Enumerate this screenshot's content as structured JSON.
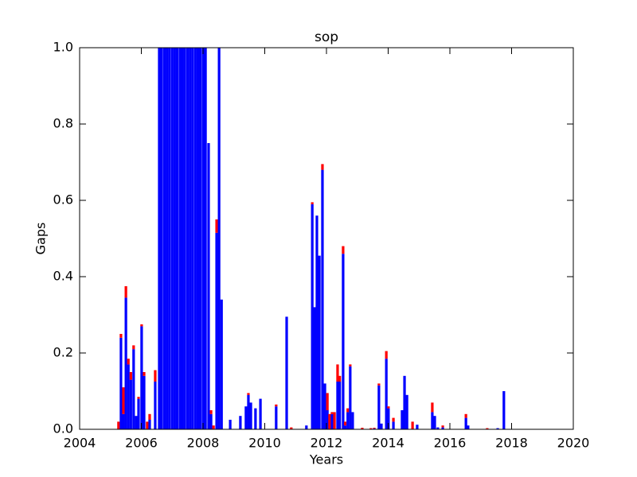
{
  "chart_data": {
    "type": "stacked_bar",
    "title": "sop",
    "x_label": "Years",
    "y_label": "Gaps",
    "x": [
      2005.26,
      2005.34,
      2005.42,
      2005.5,
      2005.58,
      2005.66,
      2005.75,
      2005.83,
      2005.91,
      2006.01,
      2006.09,
      2006.19,
      2006.27,
      2006.45,
      2006.58,
      2006.66,
      2006.75,
      2006.83,
      2006.91,
      2007.0,
      2007.08,
      2007.16,
      2007.25,
      2007.33,
      2007.41,
      2007.5,
      2007.58,
      2007.66,
      2007.75,
      2007.83,
      2007.91,
      2008.0,
      2008.08,
      2008.18,
      2008.26,
      2008.34,
      2008.44,
      2008.52,
      2008.6,
      2008.88,
      2009.21,
      2009.39,
      2009.47,
      2009.55,
      2009.7,
      2009.86,
      2010.37,
      2010.71,
      2010.86,
      2011.35,
      2011.54,
      2011.61,
      2011.69,
      2011.77,
      2011.87,
      2011.95,
      2012.03,
      2012.1,
      2012.18,
      2012.26,
      2012.36,
      2012.43,
      2012.54,
      2012.61,
      2012.69,
      2012.77,
      2012.85,
      2013.16,
      2013.44,
      2013.55,
      2013.7,
      2013.78,
      2013.94,
      2014.01,
      2014.17,
      2014.45,
      2014.53,
      2014.61,
      2014.79,
      2014.94,
      2015.43,
      2015.51,
      2015.61,
      2015.77,
      2016.52,
      2016.59,
      2017.21,
      2017.55,
      2017.75
    ],
    "series": [
      {
        "color": "#0000ff",
        "values": [
          0,
          0.24,
          0.04,
          0.345,
          0.17,
          0.13,
          0.21,
          0.035,
          0.08,
          0.27,
          0.14,
          0,
          0.025,
          0.125,
          1,
          1,
          1,
          1,
          1,
          1,
          1,
          1,
          1,
          1,
          1,
          1,
          1,
          1,
          1,
          1,
          1,
          1,
          1,
          0.75,
          0.04,
          0,
          0.515,
          1,
          0.34,
          0.025,
          0.035,
          0.06,
          0.09,
          0.07,
          0.055,
          0.08,
          0.06,
          0.295,
          0,
          0.01,
          0.59,
          0.32,
          0.56,
          0.455,
          0.68,
          0.12,
          0.05,
          0,
          0.04,
          0,
          0.125,
          0.125,
          0.46,
          0.01,
          0.045,
          0.165,
          0.045,
          0,
          0,
          0.002,
          0.115,
          0.015,
          0.185,
          0.055,
          0.02,
          0.05,
          0.14,
          0.09,
          0,
          0.012,
          0.045,
          0.035,
          0.005,
          0.005,
          0.03,
          0.01,
          0,
          0.003,
          0.1
        ]
      },
      {
        "color": "#ff0000",
        "values": [
          0.02,
          0.01,
          0.07,
          0.03,
          0.015,
          0.02,
          0.01,
          0,
          0.005,
          0.005,
          0.01,
          0.02,
          0.015,
          0.03,
          0,
          0,
          0,
          0,
          0,
          0,
          0,
          0,
          0,
          0,
          0,
          0,
          0,
          0,
          0,
          0,
          0,
          0,
          0,
          0,
          0.01,
          0.01,
          0.035,
          0,
          0,
          0,
          0,
          0,
          0.005,
          0,
          0,
          0,
          0.005,
          0,
          0.005,
          0,
          0.005,
          0,
          0,
          0,
          0.015,
          0,
          0.045,
          0.04,
          0.005,
          0.045,
          0.045,
          0.015,
          0.02,
          0.01,
          0.01,
          0.005,
          0,
          0.004,
          0.003,
          0.002,
          0.005,
          0,
          0.02,
          0.005,
          0.01,
          0,
          0,
          0,
          0.02,
          0,
          0.025,
          0,
          0,
          0.005,
          0.01,
          0,
          0.003,
          0,
          0
        ]
      }
    ],
    "xlim": [
      2004,
      2020
    ],
    "xticks": [
      2004,
      2006,
      2008,
      2010,
      2012,
      2014,
      2016,
      2018,
      2020
    ],
    "ylim": [
      0,
      1
    ],
    "yticks": [
      {
        "value": 0,
        "label": "0.0"
      },
      0.2,
      0.4,
      0.6,
      0.8,
      {
        "value": 1,
        "label": "1.0"
      }
    ],
    "grid": false
  }
}
